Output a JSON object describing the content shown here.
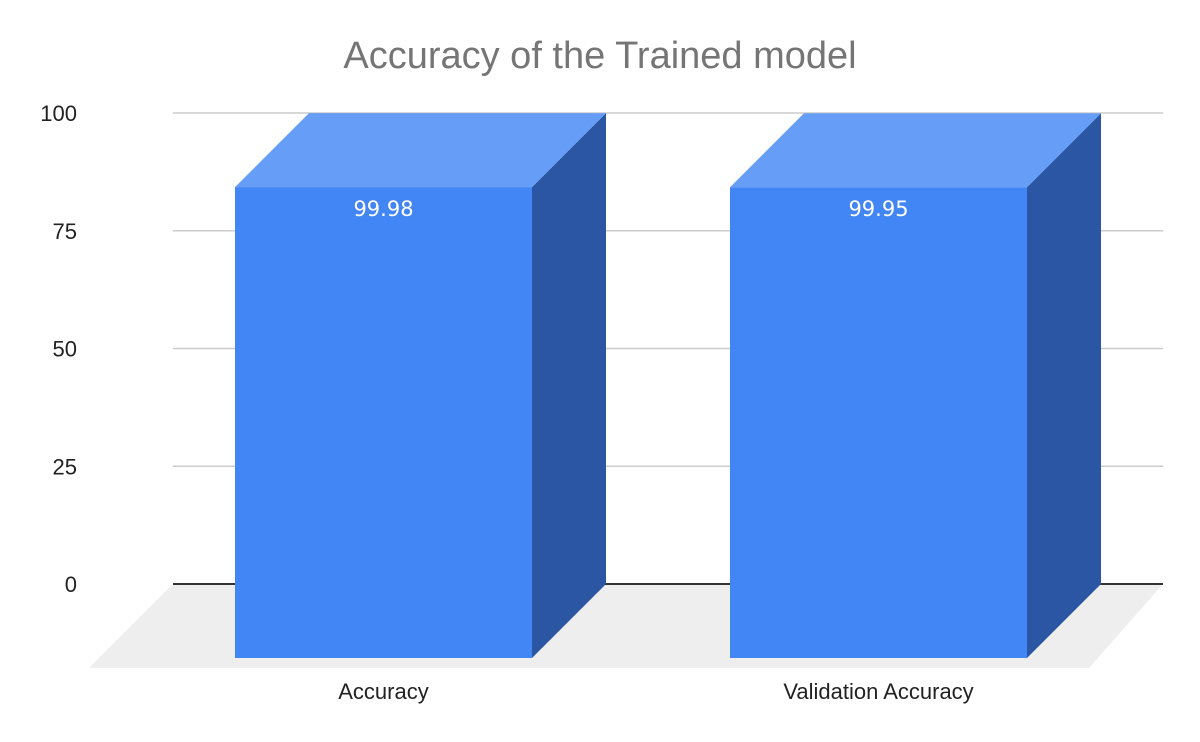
{
  "chart_data": {
    "type": "bar",
    "style": "3d",
    "title": "Accuracy of the Trained model",
    "xlabel": "",
    "ylabel": "",
    "categories": [
      "Accuracy",
      "Validation Accuracy"
    ],
    "values": [
      99.98,
      99.95
    ],
    "data_labels": [
      "99.98",
      "99.95"
    ],
    "ylim": [
      0,
      100
    ],
    "yticks": [
      0,
      25,
      50,
      75,
      100
    ],
    "ytick_labels": [
      "0",
      "25",
      "50",
      "75",
      "100"
    ],
    "grid": true,
    "legend": "none",
    "colors": {
      "bar_front": "#4285f4",
      "bar_top": "#669df6",
      "bar_side": "#2a56a3",
      "floor": "#eeeeee",
      "gridline": "#cccccc",
      "baseline": "#333333",
      "title": "#757575"
    }
  }
}
